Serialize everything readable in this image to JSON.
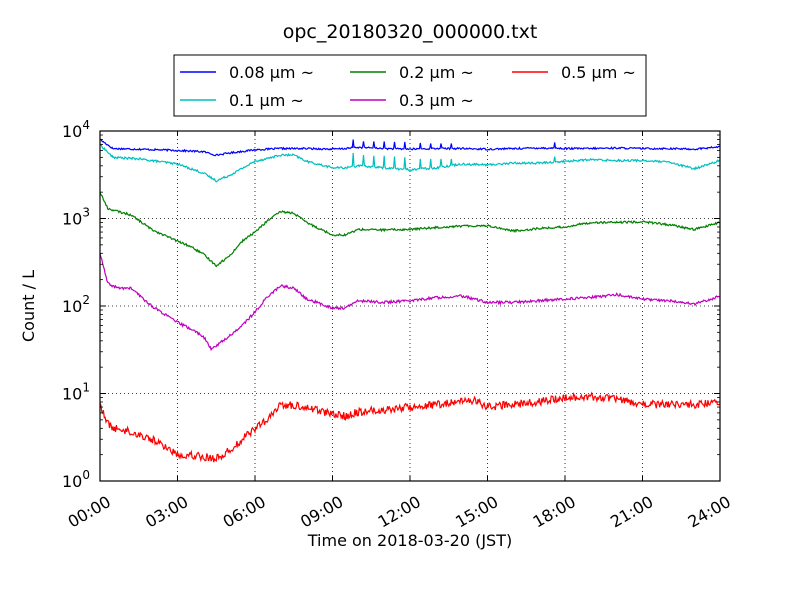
{
  "chart_data": {
    "type": "line",
    "title": "opc_20180320_000000.txt",
    "xlabel": "Time on 2018-03-20 (JST)",
    "ylabel": "Count / L",
    "xlim": [
      0,
      24
    ],
    "ylim": [
      1,
      10000
    ],
    "yscale": "log",
    "grid": true,
    "legend_position": "top-center",
    "x_ticks": [
      "00:00",
      "03:00",
      "06:00",
      "09:00",
      "12:00",
      "15:00",
      "18:00",
      "21:00",
      "24:00"
    ],
    "y_ticks": [
      {
        "base": "10",
        "exp": "0"
      },
      {
        "base": "10",
        "exp": "1"
      },
      {
        "base": "10",
        "exp": "2"
      },
      {
        "base": "10",
        "exp": "3"
      },
      {
        "base": "10",
        "exp": "4"
      }
    ],
    "series": [
      {
        "name": "0.08 μm ~",
        "color": "#0000ff",
        "noise": 0.01,
        "x": [
          0,
          0.5,
          1.5,
          3,
          4,
          4.5,
          5,
          6,
          7,
          8,
          9,
          9.5,
          10,
          11,
          12,
          13,
          14,
          15,
          16,
          17,
          18,
          19,
          20,
          21,
          22,
          23,
          24
        ],
        "y": [
          8000,
          6300,
          6200,
          6000,
          5800,
          5300,
          5600,
          6100,
          6300,
          6300,
          6200,
          6300,
          6500,
          6300,
          6200,
          6300,
          6300,
          6200,
          6300,
          6400,
          6300,
          6300,
          6400,
          6300,
          6300,
          6200,
          6600
        ],
        "spikes": [
          [
            9.8,
            8000
          ],
          [
            10.2,
            7600
          ],
          [
            10.6,
            7600
          ],
          [
            11,
            7600
          ],
          [
            11.4,
            7500
          ],
          [
            11.8,
            7500
          ],
          [
            12.4,
            7300
          ],
          [
            12.8,
            7200
          ],
          [
            13.2,
            7200
          ],
          [
            13.6,
            7200
          ],
          [
            17.6,
            7400
          ]
        ]
      },
      {
        "name": "0.1 μm ~",
        "color": "#00bfbf",
        "noise": 0.012,
        "x": [
          0,
          0.5,
          1.5,
          3,
          4,
          4.5,
          5,
          6,
          7,
          7.5,
          8,
          9,
          9.5,
          10,
          11,
          12,
          13,
          14,
          15,
          16,
          17,
          18,
          19,
          20,
          21,
          22,
          23,
          24
        ],
        "y": [
          7000,
          5000,
          4800,
          4200,
          3300,
          2700,
          3100,
          4500,
          5300,
          5300,
          4500,
          3800,
          3800,
          4000,
          3800,
          3600,
          3800,
          4200,
          4100,
          4300,
          4300,
          4500,
          4700,
          4600,
          4600,
          4400,
          3700,
          4600
        ],
        "spikes": [
          [
            9.8,
            5600
          ],
          [
            10.2,
            5300
          ],
          [
            10.6,
            5200
          ],
          [
            11,
            5200
          ],
          [
            11.4,
            5100
          ],
          [
            11.8,
            5000
          ],
          [
            12.4,
            4800
          ],
          [
            12.8,
            4800
          ],
          [
            13.2,
            4800
          ],
          [
            13.6,
            4800
          ],
          [
            17.6,
            5100
          ]
        ]
      },
      {
        "name": "0.2 μm ~",
        "color": "#008000",
        "noise": 0.012,
        "x": [
          0,
          0.3,
          0.7,
          1.2,
          2,
          3,
          3.5,
          4,
          4.5,
          5,
          5.5,
          6,
          6.5,
          7,
          7.5,
          8,
          9,
          9.5,
          10,
          11,
          12,
          13,
          14,
          15,
          16,
          17,
          18,
          19,
          20,
          21,
          22,
          23,
          24
        ],
        "y": [
          2000,
          1300,
          1200,
          1100,
          750,
          550,
          480,
          390,
          290,
          370,
          550,
          700,
          950,
          1200,
          1150,
          900,
          650,
          650,
          750,
          740,
          750,
          790,
          820,
          830,
          720,
          770,
          800,
          900,
          900,
          920,
          850,
          750,
          900
        ]
      },
      {
        "name": "0.3 μm ~",
        "color": "#bf00bf",
        "noise": 0.015,
        "x": [
          0,
          0.3,
          0.7,
          1.2,
          2,
          3,
          3.5,
          4,
          4.3,
          5,
          5.5,
          6,
          6.5,
          7,
          7.5,
          8,
          9,
          9.5,
          10,
          11,
          12,
          13,
          14,
          15,
          16,
          17,
          18,
          19,
          20,
          21,
          22,
          23,
          24
        ],
        "y": [
          400,
          180,
          160,
          160,
          100,
          65,
          55,
          45,
          32,
          45,
          60,
          85,
          130,
          170,
          160,
          120,
          95,
          95,
          115,
          110,
          115,
          125,
          130,
          110,
          110,
          115,
          120,
          125,
          135,
          120,
          115,
          105,
          130
        ]
      },
      {
        "name": "0.5 μm ~",
        "color": "#ff0000",
        "noise": 0.045,
        "x": [
          0,
          0.2,
          0.5,
          1,
          2,
          2.5,
          3,
          3.5,
          4,
          4.5,
          5,
          5.5,
          6,
          6.5,
          7,
          8,
          9,
          9.5,
          10,
          11,
          12,
          13,
          14,
          14.5,
          15,
          16,
          17,
          18,
          19,
          20,
          21,
          22,
          23,
          24
        ],
        "y": [
          8,
          5,
          4,
          3.8,
          3,
          2.5,
          2,
          2,
          1.9,
          1.8,
          2.2,
          3,
          4,
          5,
          7.5,
          7,
          5.8,
          5.5,
          6.2,
          6.5,
          7,
          7.5,
          8,
          8.5,
          7,
          7.5,
          8,
          9,
          9.2,
          8.5,
          7.5,
          7.5,
          7.5,
          8
        ]
      }
    ]
  }
}
